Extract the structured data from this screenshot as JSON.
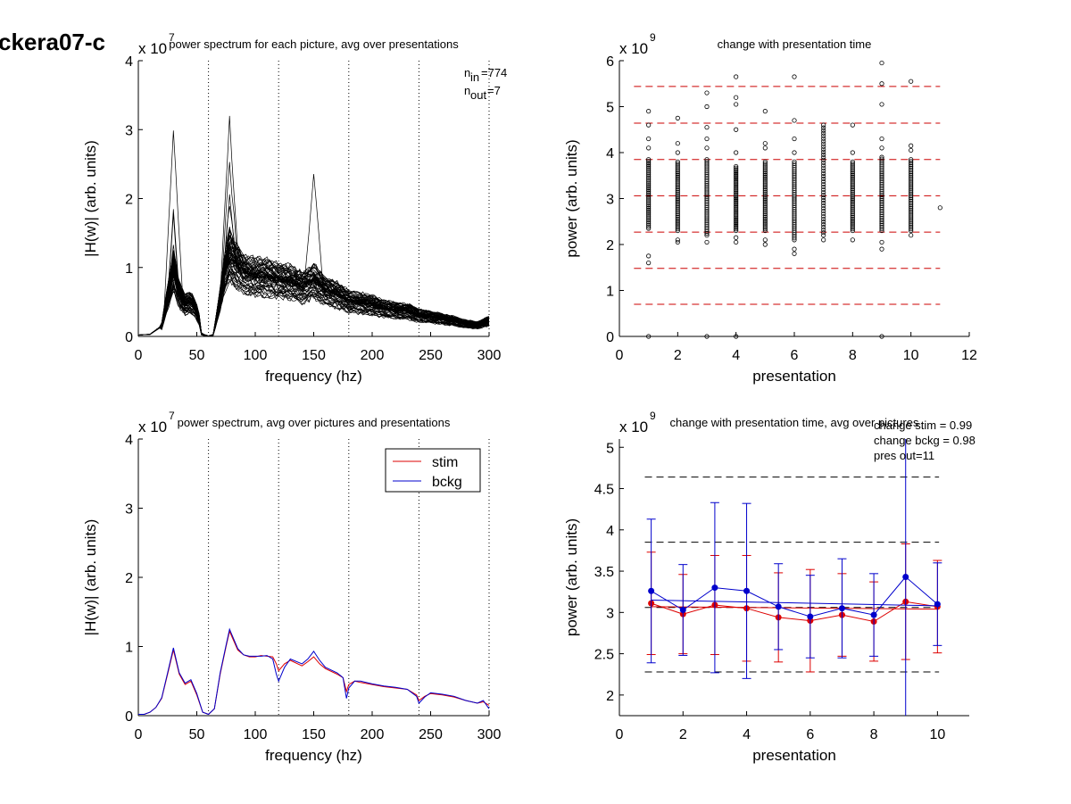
{
  "figure_title": "ckera07-c",
  "chart_data": [
    {
      "id": "p1",
      "type": "line",
      "title": "power spectrum for each picture, avg over presentations",
      "xlabel": "frequency (hz)",
      "ylabel": "|H(w)| (arb. units)",
      "exponent": "7",
      "xlim": [
        0,
        300
      ],
      "ylim": [
        0,
        4
      ],
      "xticks": [
        0,
        50,
        100,
        150,
        200,
        250,
        300
      ],
      "yticks": [
        0,
        1,
        2,
        3,
        4
      ],
      "vlines": [
        60,
        120,
        180,
        240,
        300
      ],
      "annotations": {
        "n_in": "774",
        "n_out": "7"
      },
      "mean_curve": {
        "x": [
          0,
          10,
          20,
          25,
          30,
          35,
          40,
          45,
          50,
          55,
          60,
          65,
          70,
          75,
          78,
          85,
          90,
          95,
          100,
          110,
          120,
          130,
          140,
          150,
          160,
          170,
          180,
          190,
          200,
          210,
          220,
          230,
          240,
          250,
          260,
          270,
          280,
          290,
          300
        ],
        "y": [
          0.02,
          0.03,
          0.15,
          0.55,
          0.95,
          0.6,
          0.45,
          0.5,
          0.35,
          0.1,
          0.02,
          0.1,
          0.55,
          1.0,
          1.15,
          1.0,
          0.9,
          0.88,
          0.85,
          0.85,
          0.8,
          0.78,
          0.7,
          0.8,
          0.65,
          0.6,
          0.5,
          0.48,
          0.45,
          0.4,
          0.38,
          0.36,
          0.3,
          0.28,
          0.25,
          0.22,
          0.18,
          0.16,
          0.22
        ]
      },
      "peaks": [
        {
          "x": 30,
          "y": 2.9
        },
        {
          "x": 78,
          "y": 3.15
        },
        {
          "x": 150,
          "y": 2.35
        }
      ],
      "line_color": "#000000"
    },
    {
      "id": "p2",
      "type": "scatter",
      "title": "change with presentation time",
      "xlabel": "presentation",
      "ylabel": "power (arb. units)",
      "exponent": "9",
      "xlim": [
        0,
        12
      ],
      "ylim": [
        0,
        6
      ],
      "xticks": [
        0,
        2,
        4,
        6,
        8,
        10,
        12
      ],
      "yticks": [
        0,
        1,
        2,
        3,
        4,
        5,
        6
      ],
      "hlines": [
        0.7,
        1.48,
        2.27,
        3.06,
        3.85,
        4.64,
        5.44
      ],
      "hline_color": "#cc0000",
      "cluster_ranges": [
        {
          "x": 1,
          "lo": 2.35,
          "hi": 3.85,
          "outliers": [
            1.6,
            1.75,
            4.1,
            4.3,
            4.6,
            4.9,
            0.0
          ]
        },
        {
          "x": 2,
          "lo": 2.3,
          "hi": 3.8,
          "outliers": [
            2.05,
            2.1,
            4.0,
            4.2,
            4.75
          ]
        },
        {
          "x": 3,
          "lo": 2.2,
          "hi": 3.85,
          "outliers": [
            2.05,
            4.1,
            4.3,
            4.55,
            5.0,
            5.3,
            0.0
          ]
        },
        {
          "x": 4,
          "lo": 2.3,
          "hi": 3.7,
          "outliers": [
            2.05,
            2.15,
            4.0,
            4.5,
            5.05,
            5.2,
            5.65,
            0.0
          ]
        },
        {
          "x": 5,
          "lo": 2.3,
          "hi": 3.8,
          "outliers": [
            2.0,
            2.1,
            4.1,
            4.2,
            4.9
          ]
        },
        {
          "x": 6,
          "lo": 2.1,
          "hi": 3.8,
          "outliers": [
            1.8,
            1.9,
            4.0,
            4.3,
            4.7,
            5.65
          ]
        },
        {
          "x": 7,
          "lo": 2.2,
          "hi": 4.6,
          "outliers": [
            2.1
          ]
        },
        {
          "x": 8,
          "lo": 2.3,
          "hi": 3.8,
          "outliers": [
            2.1,
            4.0,
            4.6
          ]
        },
        {
          "x": 9,
          "lo": 2.3,
          "hi": 3.9,
          "outliers": [
            1.9,
            2.05,
            4.1,
            4.3,
            5.05,
            5.5,
            5.95,
            0.0
          ]
        },
        {
          "x": 10,
          "lo": 2.3,
          "hi": 3.85,
          "outliers": [
            2.2,
            4.05,
            4.15,
            5.55
          ]
        },
        {
          "x": 11,
          "lo": 2.8,
          "hi": 2.8,
          "outliers": []
        }
      ]
    },
    {
      "id": "p3",
      "type": "line",
      "title": "power spectrum, avg over pictures and presentations",
      "xlabel": "frequency (hz)",
      "ylabel": "|H(w)| (arb. units)",
      "exponent": "7",
      "xlim": [
        0,
        300
      ],
      "ylim": [
        0,
        4
      ],
      "xticks": [
        0,
        50,
        100,
        150,
        200,
        250,
        300
      ],
      "yticks": [
        0,
        1,
        2,
        3,
        4
      ],
      "vlines": [
        60,
        120,
        180,
        240,
        300
      ],
      "legend": {
        "position": "top-right",
        "entries": [
          "stim",
          "bckg"
        ]
      },
      "x": [
        0,
        5,
        10,
        15,
        20,
        25,
        30,
        35,
        40,
        45,
        50,
        55,
        60,
        65,
        70,
        75,
        78,
        85,
        90,
        95,
        100,
        105,
        110,
        115,
        118,
        120,
        125,
        130,
        140,
        145,
        150,
        155,
        160,
        170,
        175,
        178,
        180,
        185,
        190,
        200,
        210,
        220,
        230,
        238,
        240,
        245,
        250,
        260,
        270,
        280,
        290,
        295,
        300
      ],
      "series": [
        {
          "name": "stim",
          "color": "#dd0000",
          "values": [
            0.02,
            0.02,
            0.05,
            0.12,
            0.25,
            0.6,
            0.95,
            0.6,
            0.45,
            0.5,
            0.3,
            0.05,
            0.02,
            0.1,
            0.6,
            1.0,
            1.22,
            0.95,
            0.88,
            0.85,
            0.85,
            0.87,
            0.86,
            0.85,
            0.75,
            0.65,
            0.75,
            0.8,
            0.72,
            0.78,
            0.85,
            0.75,
            0.68,
            0.6,
            0.55,
            0.35,
            0.45,
            0.5,
            0.48,
            0.45,
            0.42,
            0.4,
            0.38,
            0.3,
            0.22,
            0.28,
            0.32,
            0.3,
            0.27,
            0.22,
            0.18,
            0.2,
            0.15
          ]
        },
        {
          "name": "bckg",
          "color": "#0000cc",
          "values": [
            0.02,
            0.02,
            0.05,
            0.12,
            0.26,
            0.62,
            0.98,
            0.62,
            0.47,
            0.52,
            0.32,
            0.05,
            0.02,
            0.1,
            0.62,
            1.02,
            1.25,
            0.97,
            0.88,
            0.86,
            0.86,
            0.86,
            0.87,
            0.82,
            0.6,
            0.5,
            0.7,
            0.82,
            0.75,
            0.82,
            0.93,
            0.8,
            0.7,
            0.62,
            0.55,
            0.25,
            0.4,
            0.5,
            0.5,
            0.46,
            0.43,
            0.41,
            0.38,
            0.28,
            0.18,
            0.27,
            0.33,
            0.31,
            0.28,
            0.22,
            0.18,
            0.22,
            0.1
          ]
        }
      ]
    },
    {
      "id": "p4",
      "type": "line",
      "title": "change with presentation time, avg over pictures",
      "xlabel": "presentation",
      "ylabel": "power (arb. units)",
      "exponent": "9",
      "xlim": [
        0,
        11
      ],
      "ylim": [
        1.75,
        5.1
      ],
      "xticks": [
        0,
        2,
        4,
        6,
        8,
        10
      ],
      "yticks": [
        2,
        2.5,
        3,
        3.5,
        4,
        4.5,
        5
      ],
      "hlines": [
        2.28,
        3.06,
        3.85,
        4.64
      ],
      "hline_color": "#000000",
      "annotations": [
        "change stim = 0.99",
        "change bckg = 0.98",
        "pres out=11"
      ],
      "x": [
        1,
        2,
        3,
        4,
        5,
        6,
        7,
        8,
        9,
        10
      ],
      "series": [
        {
          "name": "stim",
          "color": "#dd0000",
          "values": [
            3.11,
            2.98,
            3.09,
            3.05,
            2.94,
            2.9,
            2.97,
            2.89,
            3.13,
            3.07
          ],
          "err": [
            0.62,
            0.48,
            0.6,
            0.64,
            0.54,
            0.62,
            0.5,
            0.48,
            0.7,
            0.56
          ],
          "trend": [
            3.07,
            3.04
          ]
        },
        {
          "name": "bckg",
          "color": "#0000cc",
          "values": [
            3.26,
            3.03,
            3.3,
            3.26,
            3.07,
            2.95,
            3.05,
            2.97,
            3.43,
            3.1
          ],
          "err": [
            0.87,
            0.55,
            1.03,
            1.06,
            0.52,
            0.5,
            0.6,
            0.5,
            1.7,
            0.5
          ],
          "trend": [
            3.15,
            3.08
          ]
        }
      ]
    }
  ]
}
